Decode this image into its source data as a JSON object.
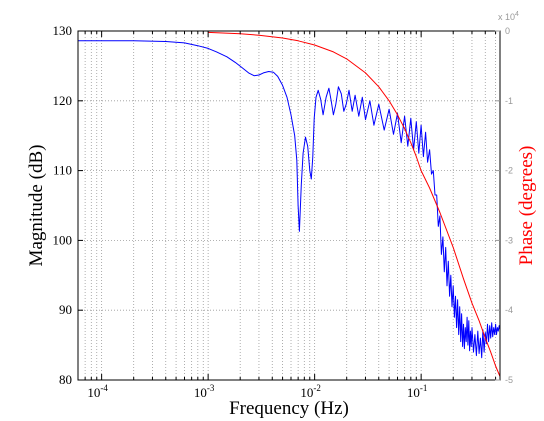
{
  "chart_data": {
    "type": "line",
    "xlabel": "Frequency (Hz)",
    "ylabel": "Magnitude (dB)",
    "y2label": "Phase (degrees)",
    "xscale": "log",
    "xlim": [
      6e-05,
      0.55
    ],
    "ylim": [
      80,
      130
    ],
    "y2lim": [
      -5,
      0
    ],
    "y2_multiplier_label": "x 10",
    "y2_multiplier_exponent": "4",
    "grid": true,
    "colors": {
      "magnitude": "#0000ff",
      "phase": "#ff0000",
      "phase_axis": "#999999",
      "axis": "#000000",
      "grid": "#9a9a9a"
    },
    "x_ticks": [
      {
        "value": 0.0001,
        "base": "10",
        "exp": "-4"
      },
      {
        "value": 0.001,
        "base": "10",
        "exp": "-3"
      },
      {
        "value": 0.01,
        "base": "10",
        "exp": "-2"
      },
      {
        "value": 0.1,
        "base": "10",
        "exp": "-1"
      }
    ],
    "y_ticks": [
      "80",
      "90",
      "100",
      "110",
      "120",
      "130"
    ],
    "y2_ticks": [
      "0",
      "-1",
      "-2",
      "-3",
      "-4",
      "-5"
    ],
    "series": [
      {
        "axis": "left",
        "color": "#0000ff",
        "x": [
          6e-05,
          0.0001,
          0.0002,
          0.0004,
          0.0006,
          0.0008,
          0.001,
          0.0012,
          0.0015,
          0.0018,
          0.0021,
          0.0024,
          0.0027,
          0.003,
          0.0033,
          0.0037,
          0.0041,
          0.0045,
          0.005,
          0.0055,
          0.006,
          0.0065,
          0.0068,
          0.007,
          0.0072,
          0.0075,
          0.0078,
          0.0082,
          0.0086,
          0.009,
          0.0093,
          0.0096,
          0.0099,
          0.0103,
          0.0108,
          0.0114,
          0.012,
          0.0128,
          0.0136,
          0.0143,
          0.015,
          0.0158,
          0.0167,
          0.0178,
          0.0188,
          0.0198,
          0.021,
          0.0225,
          0.024,
          0.026,
          0.028,
          0.03,
          0.033,
          0.036,
          0.04,
          0.045,
          0.05,
          0.055,
          0.06,
          0.065,
          0.07,
          0.075,
          0.08,
          0.085,
          0.09,
          0.095,
          0.1,
          0.105,
          0.11,
          0.115,
          0.12,
          0.125,
          0.13,
          0.135,
          0.14,
          0.145,
          0.15,
          0.155,
          0.16,
          0.165,
          0.17,
          0.175,
          0.18,
          0.185,
          0.19,
          0.195,
          0.2,
          0.205,
          0.21,
          0.215,
          0.22,
          0.225,
          0.23,
          0.235,
          0.24,
          0.245,
          0.25,
          0.255,
          0.26,
          0.265,
          0.27,
          0.275,
          0.28,
          0.285,
          0.29,
          0.295,
          0.3,
          0.31,
          0.32,
          0.33,
          0.34,
          0.35,
          0.36,
          0.37,
          0.38,
          0.39,
          0.4,
          0.41,
          0.42,
          0.43,
          0.44,
          0.45,
          0.46,
          0.47,
          0.48,
          0.49,
          0.5,
          0.51,
          0.52,
          0.53,
          0.54,
          0.55
        ],
        "y": [
          128.6,
          128.6,
          128.6,
          128.5,
          128.3,
          127.9,
          127.5,
          127.0,
          126.3,
          125.5,
          124.7,
          124.0,
          123.6,
          123.7,
          124.0,
          124.2,
          124.1,
          123.5,
          122.2,
          120.5,
          118.0,
          115.0,
          111.5,
          105.0,
          101.3,
          108.0,
          112.5,
          114.8,
          113.5,
          110.0,
          108.8,
          112.0,
          117.5,
          120.5,
          121.5,
          120.2,
          118.0,
          120.5,
          121.8,
          120.0,
          118.0,
          119.5,
          122.0,
          121.0,
          118.5,
          119.5,
          121.5,
          118.5,
          120.8,
          117.8,
          120.5,
          117.3,
          120.0,
          116.5,
          119.5,
          115.8,
          118.8,
          115.2,
          118.2,
          114.0,
          117.8,
          113.5,
          117.5,
          113.0,
          117.0,
          112.5,
          116.5,
          112.0,
          115.5,
          111.2,
          113.0,
          109.5,
          110.0,
          106.5,
          106.5,
          102.0,
          103.5,
          98.0,
          100.5,
          95.5,
          99.0,
          93.5,
          97.0,
          92.0,
          95.0,
          90.5,
          93.5,
          89.0,
          92.0,
          87.5,
          91.5,
          86.5,
          90.5,
          85.5,
          89.5,
          84.8,
          88.0,
          84.5,
          87.5,
          85.5,
          89.0,
          85.0,
          88.5,
          84.2,
          87.0,
          84.8,
          87.5,
          84.0,
          86.5,
          83.5,
          87.0,
          83.8,
          86.0,
          83.2,
          87.2,
          84.0,
          86.8,
          85.2,
          88.0,
          85.5,
          87.8,
          86.0,
          88.2,
          86.2,
          87.5,
          86.5,
          88.0,
          86.5,
          87.5,
          87.0,
          87.8,
          87.2
        ],
        "name": ""
      },
      {
        "axis": "right",
        "color": "#ff0000",
        "x": [
          0.001,
          0.002,
          0.003,
          0.005,
          0.007,
          0.01,
          0.015,
          0.02,
          0.03,
          0.04,
          0.05,
          0.06,
          0.07,
          0.08,
          0.09,
          0.1,
          0.12,
          0.15,
          0.2,
          0.25,
          0.3,
          0.35,
          0.4,
          0.45,
          0.5,
          0.55
        ],
        "y": [
          -0.02,
          -0.04,
          -0.06,
          -0.1,
          -0.14,
          -0.2,
          -0.3,
          -0.4,
          -0.6,
          -0.8,
          -1.0,
          -1.2,
          -1.4,
          -1.6,
          -1.8,
          -2.0,
          -2.25,
          -2.6,
          -3.1,
          -3.55,
          -3.9,
          -4.15,
          -4.4,
          -4.6,
          -4.8,
          -4.95
        ],
        "name": ""
      }
    ]
  }
}
